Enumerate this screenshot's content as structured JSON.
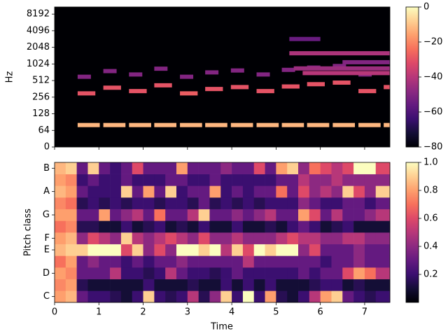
{
  "chart_data": [
    {
      "type": "spectrogram",
      "ylabel": "Hz",
      "xlim": [
        0,
        7.57
      ],
      "xticks": [
        0,
        1,
        2,
        3,
        4,
        5,
        6,
        7
      ],
      "ylim": [
        0,
        11025
      ],
      "yscale": "symlog",
      "linthresh": 64,
      "yticks": [
        0,
        64,
        128,
        256,
        512,
        1024,
        2048,
        4096,
        8192
      ],
      "colormap": "magma",
      "clim": [
        -80,
        0
      ],
      "cticks": [
        0,
        {
          "value": -20,
          "label": "−20"
        },
        {
          "value": -40,
          "label": "−40"
        },
        {
          "value": -60,
          "label": "−60"
        },
        {
          "value": -80,
          "label": "−80"
        }
      ],
      "events": [
        [
          0.52,
          1.02,
          80,
          -12
        ],
        [
          0.52,
          0.92,
          300,
          -30
        ],
        [
          0.52,
          0.82,
          600,
          -50
        ],
        [
          1.1,
          1.6,
          80,
          -12
        ],
        [
          1.1,
          1.5,
          380,
          -30
        ],
        [
          1.1,
          1.4,
          760,
          -50
        ],
        [
          1.68,
          2.18,
          80,
          -12
        ],
        [
          1.68,
          2.08,
          330,
          -30
        ],
        [
          1.68,
          1.98,
          660,
          -50
        ],
        [
          2.25,
          2.75,
          80,
          -12
        ],
        [
          2.25,
          2.65,
          420,
          -30
        ],
        [
          2.25,
          2.55,
          840,
          -50
        ],
        [
          2.83,
          3.33,
          80,
          -12
        ],
        [
          2.83,
          3.23,
          300,
          -28
        ],
        [
          2.83,
          3.13,
          600,
          -50
        ],
        [
          3.4,
          3.9,
          80,
          -12
        ],
        [
          3.4,
          3.8,
          360,
          -30
        ],
        [
          3.4,
          3.7,
          720,
          -50
        ],
        [
          3.98,
          4.48,
          80,
          -12
        ],
        [
          3.98,
          4.38,
          390,
          -30
        ],
        [
          3.98,
          4.28,
          780,
          -50
        ],
        [
          4.56,
          5.06,
          80,
          -12
        ],
        [
          4.56,
          4.96,
          330,
          -30
        ],
        [
          4.56,
          4.86,
          660,
          -50
        ],
        [
          5.13,
          5.63,
          80,
          -12
        ],
        [
          5.13,
          5.53,
          400,
          -30
        ],
        [
          5.13,
          5.43,
          800,
          -50
        ],
        [
          5.7,
          6.2,
          80,
          -12
        ],
        [
          5.7,
          6.1,
          440,
          -30
        ],
        [
          5.7,
          6.0,
          880,
          -50
        ],
        [
          6.28,
          6.78,
          80,
          -12
        ],
        [
          6.28,
          6.68,
          470,
          -30
        ],
        [
          6.28,
          6.58,
          940,
          -50
        ],
        [
          6.86,
          7.36,
          80,
          -12
        ],
        [
          6.86,
          7.26,
          330,
          -30
        ],
        [
          6.86,
          7.16,
          660,
          -50
        ],
        [
          7.43,
          7.57,
          80,
          -12
        ],
        [
          7.43,
          7.57,
          390,
          -30
        ],
        [
          5.3,
          7.57,
          1600,
          -42
        ],
        [
          5.4,
          7.57,
          850,
          -45
        ],
        [
          5.6,
          7.57,
          700,
          -40
        ],
        [
          6.5,
          7.57,
          1100,
          -50
        ],
        [
          5.3,
          6.0,
          2900,
          -55
        ]
      ]
    },
    {
      "type": "chromagram",
      "xlabel": "Time",
      "ylabel": "Pitch class",
      "xlim": [
        0,
        7.57
      ],
      "xticks": [
        0,
        1,
        2,
        3,
        4,
        5,
        6,
        7
      ],
      "categories": [
        "C",
        null,
        "D",
        null,
        "E",
        "F",
        null,
        "G",
        null,
        "A",
        null,
        "B"
      ],
      "colormap": "magma",
      "clim": [
        0,
        1
      ],
      "cticks": [
        0.2,
        0.4,
        0.6,
        0.8,
        {
          "value": 1.0,
          "label": "1.0"
        }
      ],
      "time_edges": [
        0,
        0.25,
        0.5,
        0.75,
        1,
        1.25,
        1.5,
        1.75,
        2,
        2.25,
        2.5,
        2.75,
        3,
        3.25,
        3.5,
        3.75,
        4,
        4.25,
        4.5,
        4.75,
        5,
        5.25,
        5.5,
        5.75,
        6,
        6.25,
        6.5,
        6.75,
        7,
        7.25,
        7.57
      ],
      "z": [
        [
          0.8,
          0.85,
          0.3,
          0.2,
          0.2,
          0.15,
          0.1,
          0.2,
          0.9,
          0.2,
          0.15,
          0.2,
          0.5,
          0.15,
          0.4,
          0.9,
          0.2,
          1.0,
          0.2,
          0.8,
          0.15,
          0.1,
          0.2,
          0.5,
          0.8,
          0.9,
          0.3,
          0.2,
          0.15,
          0.2
        ],
        [
          0.75,
          0.8,
          0.15,
          0.1,
          0.1,
          0.1,
          0.1,
          0.1,
          0.2,
          0.1,
          0.1,
          0.1,
          0.15,
          0.1,
          0.1,
          0.2,
          0.1,
          0.2,
          0.1,
          0.2,
          0.1,
          0.1,
          0.1,
          0.15,
          0.2,
          0.2,
          0.1,
          0.15,
          0.1,
          0.1
        ],
        [
          0.8,
          0.75,
          0.3,
          0.3,
          0.3,
          0.5,
          0.2,
          0.2,
          0.15,
          0.2,
          0.5,
          0.3,
          0.2,
          0.2,
          0.15,
          0.2,
          0.3,
          0.2,
          0.2,
          0.2,
          0.2,
          0.2,
          0.3,
          0.2,
          0.3,
          0.3,
          0.6,
          0.8,
          0.7,
          0.5
        ],
        [
          0.7,
          0.8,
          0.3,
          0.4,
          0.3,
          0.3,
          0.2,
          0.3,
          0.2,
          0.3,
          0.3,
          0.4,
          0.3,
          0.3,
          0.3,
          0.3,
          0.3,
          0.5,
          0.3,
          0.3,
          0.3,
          0.3,
          0.3,
          0.3,
          0.2,
          0.3,
          0.3,
          0.4,
          0.3,
          0.3
        ],
        [
          0.85,
          0.9,
          0.9,
          1,
          1,
          1,
          0.6,
          0.9,
          0.4,
          0.6,
          0.4,
          1,
          1,
          0.9,
          1,
          0.5,
          0.9,
          0.6,
          1,
          0.9,
          1,
          1,
          0.4,
          0.6,
          0.3,
          0.3,
          0.3,
          0.4,
          0.3,
          0.3
        ],
        [
          0.8,
          0.85,
          0.4,
          0.6,
          0.5,
          0.4,
          0.9,
          0.5,
          0.4,
          0.5,
          0.6,
          0.5,
          0.4,
          0.6,
          0.4,
          0.4,
          0.5,
          0.4,
          0.4,
          0.4,
          0.5,
          0.6,
          0.5,
          0.5,
          0.4,
          0.4,
          0.5,
          0.5,
          0.4,
          0.4
        ],
        [
          0.7,
          0.75,
          0.15,
          0.15,
          0.1,
          0.1,
          0.2,
          0.1,
          0.15,
          0.2,
          0.1,
          0.15,
          0.1,
          0.2,
          0.1,
          0.1,
          0.2,
          0.1,
          0.1,
          0.15,
          0.1,
          0.2,
          0.3,
          0.2,
          0.1,
          0.15,
          0.2,
          0.1,
          0.1,
          0.1
        ],
        [
          0.8,
          0.8,
          0.3,
          0.3,
          0.8,
          0.3,
          0.4,
          0.5,
          0.3,
          0.7,
          0.3,
          0.3,
          0.5,
          0.9,
          0.3,
          0.3,
          0.4,
          0.3,
          0.4,
          0.5,
          0.3,
          0.3,
          0.8,
          0.6,
          0.3,
          0.5,
          0.3,
          0.3,
          0.4,
          0.5
        ],
        [
          0.75,
          0.7,
          0.15,
          0.2,
          0.15,
          0.2,
          0.15,
          0.2,
          0.2,
          0.15,
          0.2,
          0.2,
          0.15,
          0.3,
          0.15,
          0.2,
          0.15,
          0.2,
          0.15,
          0.2,
          0.2,
          0.2,
          0.4,
          0.3,
          0.2,
          0.2,
          0.3,
          0.3,
          0.2,
          0.3
        ],
        [
          0.85,
          0.8,
          0.3,
          0.2,
          0.2,
          0.2,
          0.9,
          0.3,
          0.8,
          0.3,
          0.9,
          0.2,
          0.3,
          0.3,
          0.8,
          0.2,
          0.3,
          0.2,
          0.3,
          0.3,
          0.7,
          0.3,
          0.6,
          0.4,
          0.5,
          0.4,
          0.9,
          0.6,
          0.4,
          0.9
        ],
        [
          0.8,
          0.75,
          0.2,
          0.3,
          0.2,
          0.2,
          0.3,
          0.2,
          0.2,
          0.2,
          0.3,
          0.3,
          0.2,
          0.2,
          0.3,
          0.2,
          0.2,
          0.2,
          0.2,
          0.2,
          0.3,
          0.3,
          0.5,
          0.4,
          0.4,
          0.5,
          0.4,
          0.4,
          0.4,
          0.4
        ],
        [
          0.85,
          0.9,
          0.3,
          0.9,
          0.3,
          0.2,
          0.3,
          0.6,
          0.3,
          0.3,
          0.3,
          0.8,
          0.3,
          0.3,
          0.3,
          0.4,
          0.3,
          0.3,
          0.6,
          0.3,
          0.8,
          0.9,
          0.4,
          0.7,
          0.6,
          0.5,
          0.6,
          1,
          1,
          0.6
        ]
      ]
    }
  ]
}
